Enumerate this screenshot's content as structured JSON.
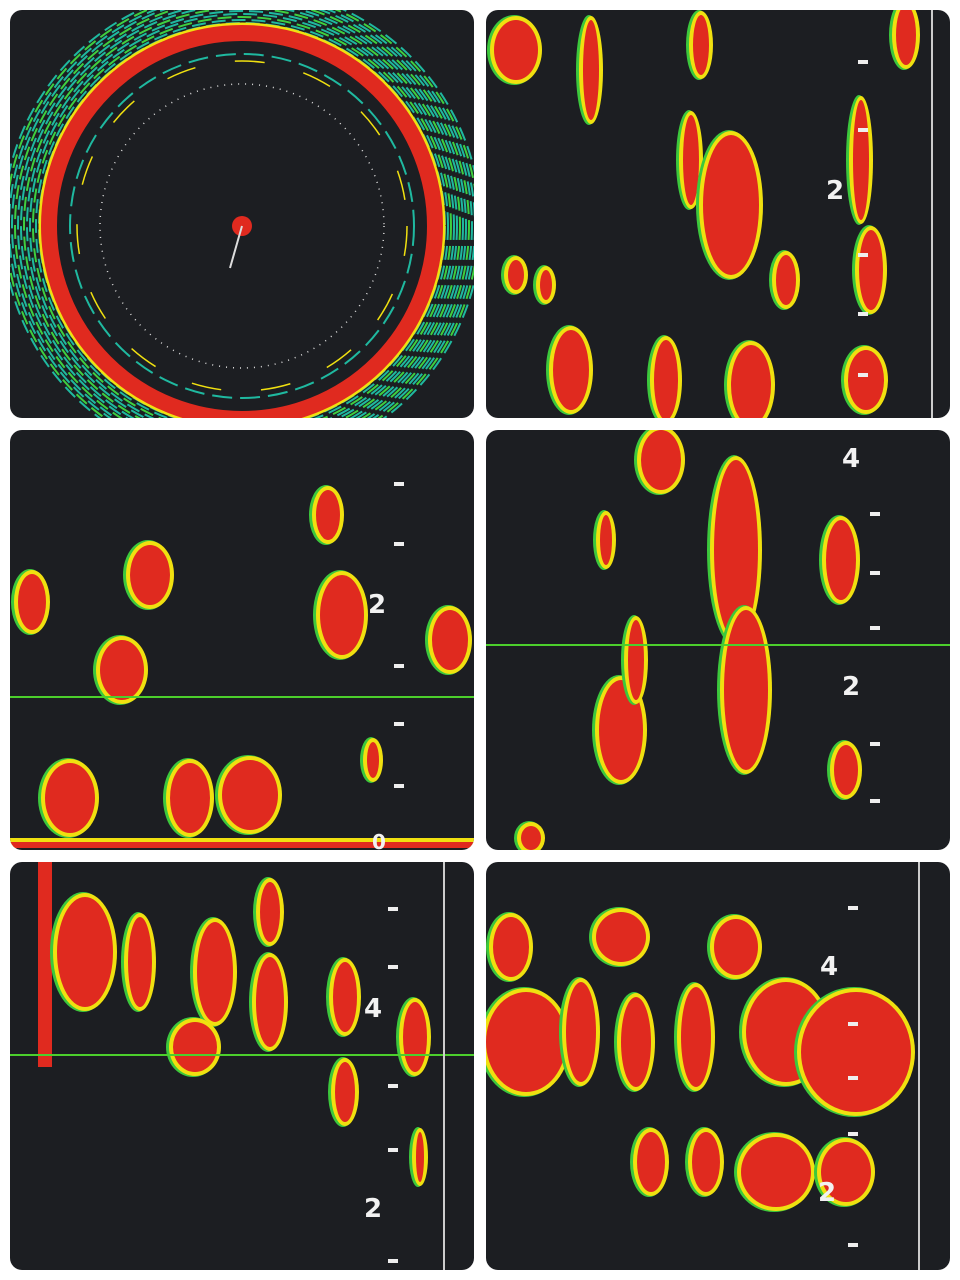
{
  "panels": [
    {
      "view": "radar-sonar-circle"
    },
    {
      "view": "echogram",
      "depth_labels": [
        "2"
      ]
    },
    {
      "view": "echogram",
      "depth_labels": [
        "2",
        "0"
      ]
    },
    {
      "view": "echogram",
      "depth_labels": [
        "4",
        "2"
      ]
    },
    {
      "view": "echogram",
      "depth_labels": [
        "4",
        "2"
      ]
    },
    {
      "view": "echogram",
      "depth_labels": [
        "4",
        "2"
      ]
    }
  ],
  "colors": {
    "strong": "#e02a1f",
    "medium": "#f0e010",
    "weak": "#3cc83c",
    "background": "#1c1e22",
    "line": "#4ccf2c"
  }
}
